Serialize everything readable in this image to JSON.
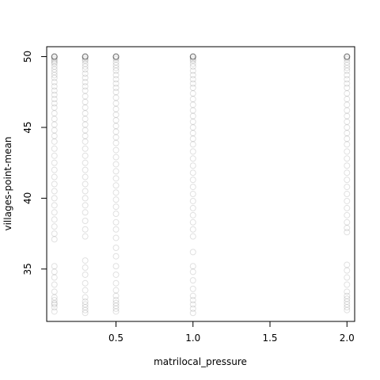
{
  "chart_data": {
    "type": "scatter",
    "title": "",
    "xlabel": "matrilocal_pressure",
    "ylabel": "villages-point-mean",
    "xlim": [
      0.05,
      2.05
    ],
    "ylim": [
      31.3,
      50.7
    ],
    "xticks": [
      0.5,
      1.0,
      1.5,
      2.0
    ],
    "xtick_labels": [
      "0.5",
      "1.0",
      "1.5",
      "2.0"
    ],
    "yticks": [
      35,
      40,
      45,
      50
    ],
    "ytick_labels": [
      "35",
      "40",
      "45",
      "50"
    ],
    "grid": false,
    "legend": "none",
    "marker": "open-circle",
    "marker_color": "#000000",
    "marker_alpha": 0.12,
    "series": [
      {
        "x": 0.1,
        "y_values": [
          50,
          50,
          50,
          50,
          50,
          50,
          49.9,
          49.8,
          49.7,
          49.6,
          49.5,
          49.3,
          49.1,
          48.9,
          48.7,
          48.5,
          48.2,
          47.9,
          47.6,
          47.3,
          47.0,
          46.7,
          46.4,
          46.0,
          45.6,
          45.2,
          44.8,
          44.4,
          44.0,
          43.5,
          43.0,
          42.5,
          42.0,
          41.5,
          41.0,
          40.5,
          40.0,
          39.5,
          39.0,
          38.5,
          38.0,
          37.5,
          37.1,
          35.2,
          34.8,
          34.4,
          33.9,
          33.4,
          33.0,
          32.8,
          32.6,
          32.5,
          32.3,
          32.0
        ]
      },
      {
        "x": 0.3,
        "y_values": [
          50,
          50,
          50,
          50,
          50,
          50,
          49.9,
          49.8,
          49.7,
          49.5,
          49.3,
          49.1,
          48.8,
          48.5,
          48.2,
          47.9,
          47.6,
          47.2,
          46.8,
          46.4,
          46.0,
          45.6,
          45.2,
          44.8,
          44.4,
          44.0,
          43.5,
          43.0,
          42.5,
          42.0,
          41.5,
          41.0,
          40.5,
          40.0,
          39.5,
          39.0,
          38.4,
          37.8,
          37.3,
          35.6,
          35.1,
          34.6,
          34.0,
          33.5,
          33.0,
          32.7,
          32.5,
          32.3,
          32.1,
          31.9
        ]
      },
      {
        "x": 0.5,
        "y_values": [
          50,
          50,
          50,
          50,
          50,
          50,
          49.9,
          49.8,
          49.6,
          49.4,
          49.2,
          49.0,
          48.7,
          48.4,
          48.1,
          47.8,
          47.5,
          47.1,
          46.7,
          46.3,
          45.9,
          45.5,
          45.1,
          44.7,
          44.3,
          43.9,
          43.4,
          42.9,
          42.4,
          41.9,
          41.4,
          40.9,
          40.4,
          39.9,
          39.4,
          38.9,
          38.3,
          37.8,
          37.2,
          36.5,
          35.9,
          35.2,
          34.6,
          34.0,
          33.5,
          33.1,
          32.8,
          32.6,
          32.4,
          32.2,
          32.0
        ]
      },
      {
        "x": 1.0,
        "y_values": [
          50,
          50,
          50,
          50,
          50,
          50,
          49.9,
          49.8,
          49.7,
          49.5,
          49.3,
          49.0,
          48.7,
          48.4,
          48.1,
          47.8,
          47.4,
          47.0,
          46.6,
          46.2,
          45.8,
          45.4,
          45.0,
          44.6,
          44.2,
          43.8,
          43.3,
          42.8,
          42.3,
          41.8,
          41.3,
          40.8,
          40.3,
          39.8,
          39.3,
          38.8,
          38.3,
          37.8,
          37.3,
          36.2,
          35.2,
          34.8,
          34.2,
          33.6,
          33.1,
          32.8,
          32.5,
          32.2,
          31.9
        ]
      },
      {
        "x": 2.0,
        "y_values": [
          50,
          50,
          50,
          50,
          50,
          50,
          49.9,
          49.8,
          49.6,
          49.4,
          49.2,
          49.0,
          48.7,
          48.4,
          48.1,
          47.8,
          47.4,
          47.0,
          46.6,
          46.2,
          45.8,
          45.4,
          45.0,
          44.6,
          44.2,
          43.8,
          43.3,
          42.8,
          42.3,
          41.8,
          41.3,
          40.8,
          40.3,
          39.8,
          39.3,
          38.8,
          38.3,
          37.9,
          37.6,
          35.3,
          34.9,
          34.4,
          33.9,
          33.4,
          33.1,
          32.9,
          32.7,
          32.5,
          32.3,
          32.1
        ]
      }
    ]
  }
}
